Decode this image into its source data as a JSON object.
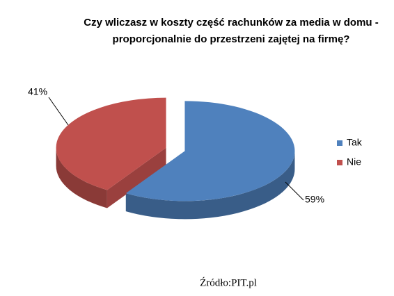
{
  "chart_data": {
    "type": "pie",
    "title": [
      "Czy wliczasz w koszty część rachunków za media w domu -",
      "proporcjonalnie do przestrzeni zajętej na firmę?"
    ],
    "categories": [
      "Tak",
      "Nie"
    ],
    "values": [
      59,
      41
    ],
    "value_labels": [
      "59%",
      "41%"
    ],
    "colors": [
      "#4f81bd",
      "#c0504d"
    ],
    "legend": "right",
    "source": "Źródło:PIT.pl"
  }
}
